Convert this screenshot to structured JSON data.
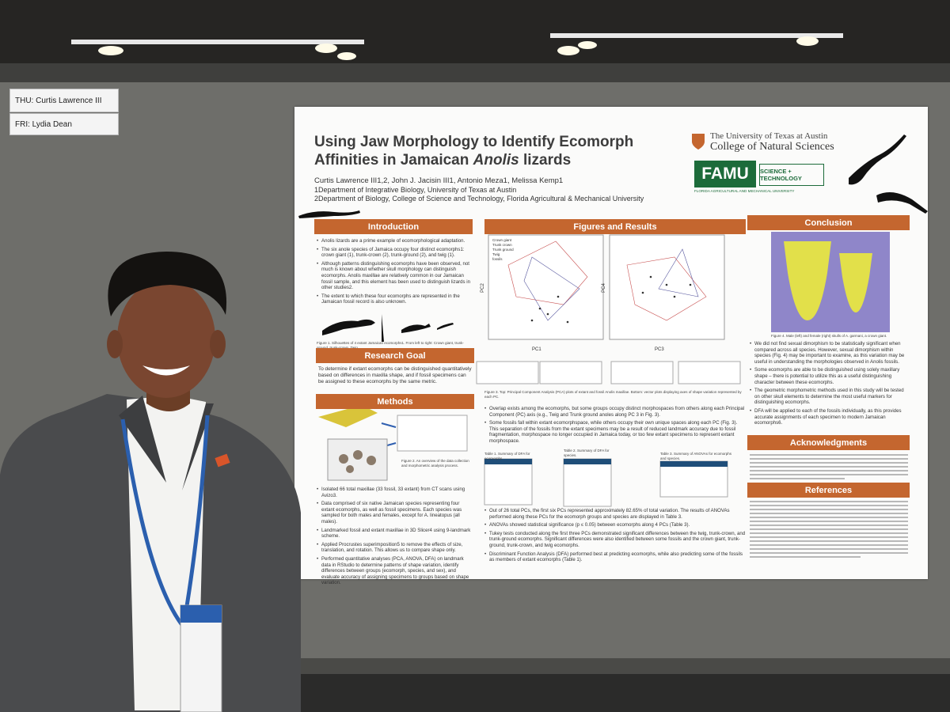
{
  "board_labels": [
    "THU: Curtis Lawrence III",
    "FRI: Lydia Dean"
  ],
  "poster": {
    "title_line1": "Using Jaw Morphology to Identify Ecomorph",
    "title_line2": "Affinities in Jamaican",
    "title_italic": "Anolis",
    "title_end": "lizards",
    "authors": "Curtis Lawrence III1,2, John J. Jacisin III1, Antonio Meza1, Melissa Kemp1",
    "affiliations": [
      "1Department of Integrative Biology, University of Texas at Austin",
      "2Department of Biology, College of Science and Technology, Florida Agricultural & Mechanical University"
    ],
    "logos": {
      "ut_line1": "The University of Texas at Austin",
      "ut_line2": "College of Natural Sciences",
      "famu": "FAMU",
      "famu_college": "SCIENCE + TECHNOLOGY",
      "famu_sub": "FLORIDA AGRICULTURAL AND MECHANICAL UNIVERSITY"
    },
    "introduction": {
      "heading": "Introduction",
      "bullets": [
        "Anolis lizards are a prime example of ecomorphological adaptation.",
        "The six anole species of Jamaica occupy four distinct ecomorphs1: crown giant (1), trunk-crown (2), trunk-ground (2), and twig (1).",
        "Although patterns distinguishing ecomorphs have been observed, not much is known about whether skull morphology can distinguish ecomorphs. Anolis maxillae are relatively common in our Jamaican fossil sample, and this element has been used to distinguish lizards in other studies2.",
        "The extent to which these four ecomorphs are represented in the Jamaican fossil record is also unknown."
      ],
      "caption": "Figure 1. Silhouettes of 4 extant Jamaican ecomorphs1. From left to right: Crown giant, trunk-ground, trunk-crown, Twig"
    },
    "research_goal": {
      "heading": "Research Goal",
      "text": "To determine if extant ecomorphs can be distinguished quantitatively based on differences in maxilla shape, and if fossil specimens can be assigned to these ecomorphs by the same metric."
    },
    "methods": {
      "heading": "Methods",
      "caption": "Figure 2. An overview of the data collection and morphometric analysis process.",
      "bullets": [
        "Isolated 66 total maxillae (33 fossil, 33 extant) from CT scans using Avizo3.",
        "Data comprised of six native Jamaican species representing four extant ecomorphs, as well as fossil specimens. Each species was sampled for both males and females, except for A. lineatopus (all males).",
        "Landmarked fossil and extant maxillae in 3D Slicer4 using 9-landmark scheme.",
        "Applied Procrustes superimposition5 to remove the effects of size, translation, and rotation. This allows us to compare shape only.",
        "Performed quantitative analyses (PCA, ANOVA, DFA) on landmark data in RStudio to determine patterns of shape variation, identify differences between groups (ecomorph, species, and sex), and evaluate accuracy of assigning specimens to groups based on shape variation."
      ]
    },
    "results": {
      "heading": "Figures and Results",
      "plot_legend": [
        "Crown giant",
        "Trunk crown",
        "Trunk ground",
        "Twig",
        "fossils"
      ],
      "axis_labels": [
        "PC1",
        "PC2",
        "PC3",
        "PC4"
      ],
      "caption": "Figure 3. Top: Principal Component Analysis (PCA) plots of extant and fossil Anolis maxillae. Bottom: vector plots displaying axes of shape variation represented by each PC.",
      "bullets_top": [
        "Overlap exists among the ecomorphs, but some groups occupy distinct morphospaces from others along each Principal Component (PC) axis (e.g., Twig and Trunk ground anoles along PC 3 in Fig. 3).",
        "Some fossils fall within extant ecomorphspace, while others occupy their own unique spaces along each PC (Fig. 3). This separation of the fossils from the extant specimens may be a result of reduced landmark accuracy due to fossil fragmentation, morphospace no longer occupied in Jamaica today, or too few extant specimens to represent extant morphospace."
      ],
      "tables": [
        "Table 1. Summary of DFA for ecomorphs.",
        "Table 2. Summary of DFA for species.",
        "Table 3. Summary of ANOVAs for ecomorphs and species."
      ],
      "bullets_bottom": [
        "Out of 26 total PCs, the first six PCs represented approximately 82.65% of total variation. The results of ANOVAs performed along these PCs for the ecomorph groups and species are displayed in Table 3.",
        "ANOVAs showed statistical significance (p ≤ 0.05) between ecomorphs along 4 PCs (Table 3).",
        "Tukey tests conducted along the first three PCs demonstrated significant differences between the twig, trunk-crown, and trunk-ground ecomorphs. Significant differences were also identified between some fossils and the crown giant, trunk-ground, trunk-crown, and twig ecomorphs.",
        "Discriminant Function Analysis (DFA) performed best at predicting ecomorphs, while also predicting some of the fossils as members of extant ecomorphs (Table 1)."
      ]
    },
    "conclusion": {
      "heading": "Conclusion",
      "caption": "Figure 4. Male (left) and female (right) skulls of A. garmani, a crown giant.",
      "bullets": [
        "We did not find sexual dimorphism to be statistically significant when compared across all species. However, sexual dimorphism within species (Fig. 4) may be important to examine, as this variation may be useful in understanding the morphologies observed in Anolis fossils.",
        "Some ecomorphs are able to be distinguished using solely maxillary shape – there is potential to utilize this as a useful distinguishing character between these ecomorphs.",
        "The geometric morphometric methods used in this study will be tested on other skull elements to determine the most useful markers for distinguishing ecomorphs.",
        "DFA will be applied to each of the fossils individually, as this provides accurate assignments of each specimen to modern Jamaican ecomorphs6."
      ]
    },
    "acknowledgments": {
      "heading": "Acknowledgments"
    },
    "references": {
      "heading": "References"
    }
  }
}
